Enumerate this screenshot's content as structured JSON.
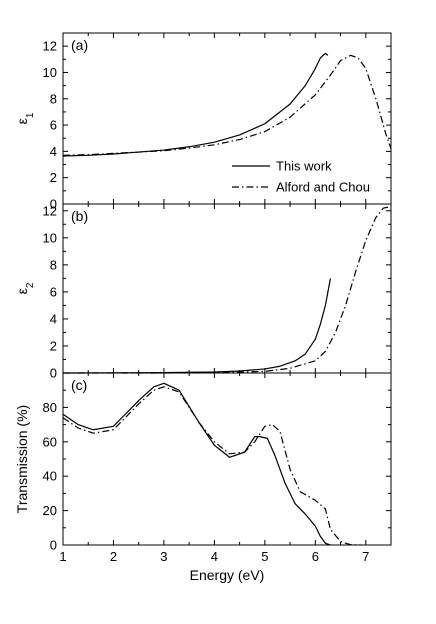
{
  "chart_data": [
    {
      "type": "line",
      "panel_label": "(a)",
      "ylabel": "ε",
      "ylabel_sub": "1",
      "xlim": [
        1,
        7.5
      ],
      "ylim": [
        0,
        13
      ],
      "yticks": [
        0,
        2,
        4,
        6,
        8,
        10,
        12
      ],
      "legend_position": "bottom-right",
      "series": [
        {
          "name": "This work",
          "style": "solid",
          "x": [
            1.0,
            1.5,
            2.0,
            2.5,
            3.0,
            3.5,
            4.0,
            4.5,
            5.0,
            5.5,
            5.8,
            6.0,
            6.1,
            6.2,
            6.25
          ],
          "y": [
            3.65,
            3.7,
            3.8,
            3.95,
            4.1,
            4.35,
            4.7,
            5.25,
            6.1,
            7.6,
            9.0,
            10.3,
            11.1,
            11.45,
            11.3
          ]
        },
        {
          "name": "Alford and Chou",
          "style": "dashdot",
          "x": [
            1.0,
            1.5,
            2.0,
            2.5,
            3.0,
            3.5,
            4.0,
            4.5,
            5.0,
            5.5,
            6.0,
            6.3,
            6.5,
            6.7,
            6.85,
            7.0,
            7.2,
            7.4,
            7.5
          ],
          "y": [
            3.7,
            3.75,
            3.85,
            3.95,
            4.05,
            4.25,
            4.5,
            4.9,
            5.5,
            6.6,
            8.3,
            9.8,
            10.9,
            11.3,
            11.1,
            10.3,
            8.0,
            5.3,
            4.2
          ]
        }
      ]
    },
    {
      "type": "line",
      "panel_label": "(b)",
      "ylabel": "ε",
      "ylabel_sub": "2",
      "xlim": [
        1,
        7.5
      ],
      "ylim": [
        0,
        12.5
      ],
      "yticks": [
        0,
        2,
        4,
        6,
        8,
        10,
        12
      ],
      "series": [
        {
          "name": "This work",
          "style": "solid",
          "x": [
            1.0,
            2.0,
            3.0,
            4.0,
            4.5,
            5.0,
            5.3,
            5.6,
            5.8,
            6.0,
            6.1,
            6.2,
            6.3
          ],
          "y": [
            0.0,
            0.01,
            0.03,
            0.08,
            0.15,
            0.3,
            0.5,
            0.9,
            1.4,
            2.5,
            3.6,
            5.0,
            7.0
          ]
        },
        {
          "name": "Alford and Chou",
          "style": "dashdot",
          "x": [
            1.0,
            3.0,
            4.0,
            5.0,
            5.5,
            6.0,
            6.2,
            6.4,
            6.6,
            6.8,
            7.0,
            7.2,
            7.35,
            7.5
          ],
          "y": [
            0.0,
            0.0,
            0.02,
            0.12,
            0.35,
            0.9,
            1.6,
            3.0,
            5.0,
            7.5,
            9.8,
            11.5,
            12.2,
            12.3
          ]
        }
      ]
    },
    {
      "type": "line",
      "panel_label": "(c)",
      "xlabel": "Energy (eV)",
      "ylabel": "Transmission (%)",
      "xlim": [
        1,
        7.5
      ],
      "ylim": [
        0,
        100
      ],
      "xticks": [
        1,
        2,
        3,
        4,
        5,
        6,
        7
      ],
      "yticks": [
        0,
        20,
        40,
        60,
        80
      ],
      "series": [
        {
          "name": "This work",
          "style": "solid",
          "x": [
            1.0,
            1.3,
            1.6,
            2.0,
            2.5,
            2.8,
            3.0,
            3.3,
            3.7,
            4.0,
            4.3,
            4.6,
            4.8,
            4.9,
            5.05,
            5.2,
            5.4,
            5.6,
            5.8,
            6.0,
            6.1,
            6.2,
            6.3
          ],
          "y": [
            76.0,
            70.0,
            67.0,
            69.0,
            84.0,
            92.0,
            94.0,
            90.0,
            71.0,
            58.0,
            51.0,
            54.0,
            63.0,
            63.0,
            62.0,
            52.0,
            36.0,
            24.0,
            18.0,
            11.0,
            5.0,
            1.0,
            0.0
          ]
        },
        {
          "name": "Alford and Chou",
          "style": "dashdot",
          "x": [
            1.0,
            1.3,
            1.6,
            2.0,
            2.5,
            2.8,
            3.0,
            3.3,
            3.7,
            4.0,
            4.3,
            4.6,
            4.8,
            5.0,
            5.15,
            5.3,
            5.5,
            5.7,
            6.0,
            6.2,
            6.3,
            6.5,
            6.7,
            6.9
          ],
          "y": [
            74.0,
            68.0,
            65.0,
            67.0,
            82.0,
            90.0,
            92.0,
            89.0,
            71.0,
            60.0,
            53.0,
            54.0,
            60.0,
            69.0,
            70.0,
            66.0,
            44.0,
            31.0,
            26.0,
            21.0,
            9.0,
            2.0,
            0.2,
            0.0
          ]
        }
      ]
    }
  ]
}
